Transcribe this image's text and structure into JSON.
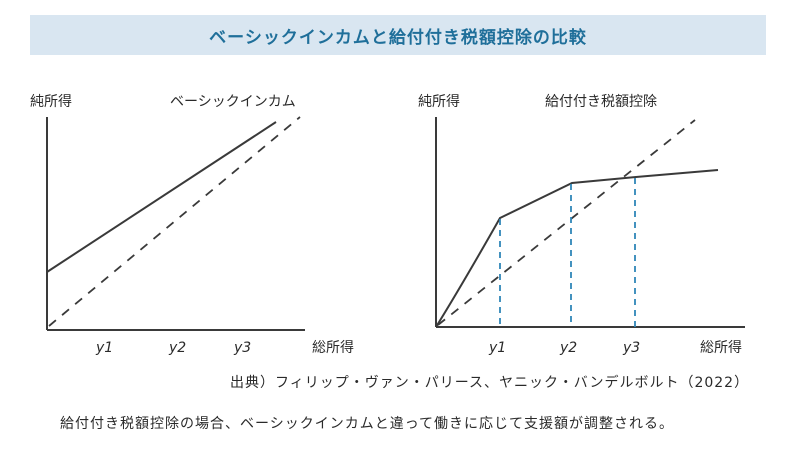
{
  "banner": {
    "title": "ベーシックインカムと給付付き税額控除の比較"
  },
  "left_chart": {
    "ylabel": "純所得",
    "title": "ベーシックインカム",
    "xlabel": "総所得",
    "ticks": [
      "y1",
      "y2",
      "y3"
    ]
  },
  "right_chart": {
    "ylabel": "純所得",
    "title": "給付付き税額控除",
    "xlabel": "総所得",
    "ticks": [
      "y1",
      "y2",
      "y3"
    ]
  },
  "source": "出典）フィリップ・ヴァン・パリース、ヤニック・バンデルボルト（2022）",
  "caption": "給付付き税額控除の場合、ベーシックインカムと違って働きに応じて支援額が調整される。",
  "colors": {
    "banner_bg": "#d9e6f1",
    "banner_text": "#1f6f9a",
    "line": "#3a3a3a",
    "guide": "#2f86b8"
  }
}
